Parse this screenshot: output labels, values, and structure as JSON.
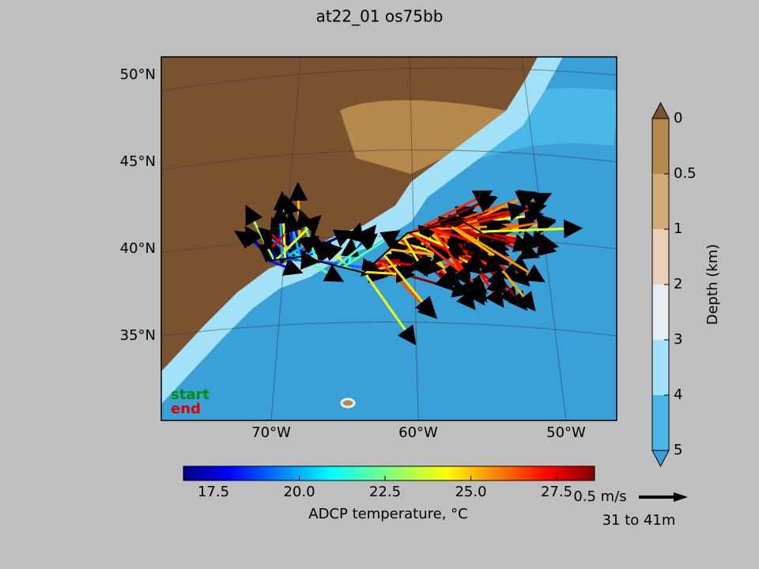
{
  "title": "at22_01 os75bb",
  "map": {
    "lat_labels": [
      "50°N",
      "45°N",
      "40°N",
      "35°N"
    ],
    "lon_labels": [
      "70°W",
      "60°W",
      "50°W"
    ],
    "legend": {
      "start": "start",
      "end": "end"
    }
  },
  "depth_colorbar": {
    "label": "Depth (km)",
    "ticks": [
      "0",
      "0.5",
      "1",
      "2",
      "3",
      "4",
      "5"
    ]
  },
  "temperature_colorbar": {
    "label": "ADCP temperature, °C",
    "ticks": [
      "17.5",
      "20.0",
      "22.5",
      "25.0",
      "27.5"
    ]
  },
  "scale": {
    "speed": "0.5 m/s",
    "depth_range": "31 to 41m"
  }
}
